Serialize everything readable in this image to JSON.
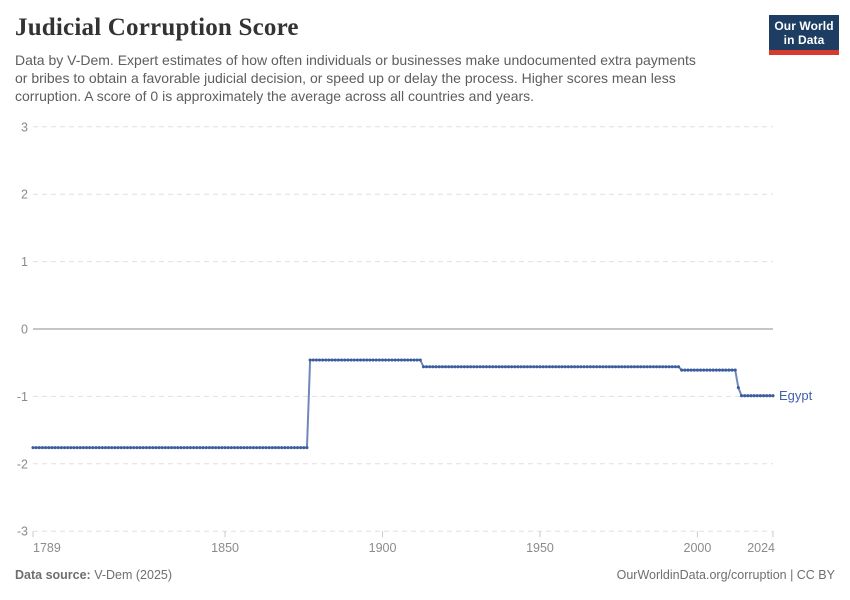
{
  "header": {
    "title": "Judicial Corruption Score",
    "subtitle_lines": [
      "Data by V-Dem. Expert estimates of how often individuals or businesses make undocumented extra payments",
      "or bribes to obtain a favorable judicial decision, or speed up or delay the process. Higher scores mean less",
      "corruption. A score of 0 is approximately the average across all countries and years."
    ]
  },
  "logo": {
    "line1": "Our World",
    "line2": "in Data",
    "bg_color": "#1d3d63",
    "stripe_color": "#d73b2f"
  },
  "chart_data": {
    "type": "line",
    "title": "Judicial Corruption Score",
    "xlabel": "",
    "ylabel": "",
    "xlim": [
      1789,
      2024
    ],
    "ylim": [
      -3,
      3
    ],
    "grid": "horizontal-dashed",
    "x_ticks": [
      1789,
      1850,
      1900,
      1950,
      2000,
      2024
    ],
    "y_ticks": [
      3,
      2,
      1,
      0,
      -1,
      -2,
      -3
    ],
    "line_color": "#3f62a7",
    "bead_color": "#3a5b9e",
    "legend_position": "line-end-label",
    "series": [
      {
        "name": "Egypt",
        "segments": [
          {
            "from": 1789,
            "to": 1876,
            "value": -1.76
          },
          {
            "from": 1877,
            "to": 1912,
            "value": -0.46
          },
          {
            "from": 1913,
            "to": 1994,
            "value": -0.56
          },
          {
            "from": 1995,
            "to": 2012,
            "value": -0.61
          },
          {
            "from": 2013,
            "to": 2013,
            "value": -0.87
          },
          {
            "from": 2014,
            "to": 2024,
            "value": -0.99
          }
        ]
      }
    ]
  },
  "footer": {
    "source_label": "Data source:",
    "source_value": " V-Dem (2025)",
    "attribution": "OurWorldinData.org/corruption | CC BY"
  }
}
